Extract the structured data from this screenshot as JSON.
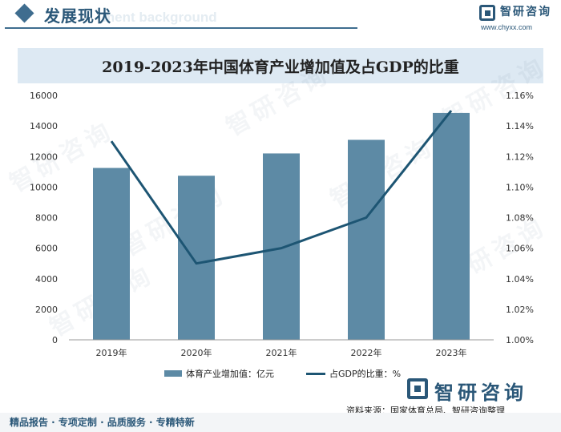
{
  "header": {
    "title": "发展现状",
    "ghost_text": "ment background",
    "brand_name": "智研咨询",
    "brand_url": "www.chyxx.com"
  },
  "watermark_text": "智研咨询",
  "chart_data": {
    "type": "bar",
    "title": "2019-2023年中国体育产业增加值及占GDP的比重",
    "categories": [
      "2019年",
      "2020年",
      "2021年",
      "2022年",
      "2023年"
    ],
    "series": [
      {
        "name": "体育产业增加值：亿元",
        "type": "bar",
        "axis": "left",
        "color": "#5d8aa5",
        "values": [
          11250,
          10740,
          12200,
          13090,
          14850
        ]
      },
      {
        "name": "占GDP的比重：%",
        "type": "line",
        "axis": "right",
        "color": "#1d5573",
        "values": [
          1.13,
          1.05,
          1.06,
          1.08,
          1.15
        ]
      }
    ],
    "y_left": {
      "min": 0,
      "max": 16000,
      "step": 2000,
      "ticks": [
        "0",
        "2000",
        "4000",
        "6000",
        "8000",
        "10000",
        "12000",
        "14000",
        "16000"
      ]
    },
    "y_right": {
      "min": 1.0,
      "max": 1.16,
      "step": 0.02,
      "ticks": [
        "1.00%",
        "1.02%",
        "1.04%",
        "1.06%",
        "1.08%",
        "1.10%",
        "1.12%",
        "1.14%",
        "1.16%"
      ]
    },
    "legend_position": "bottom-center"
  },
  "footer": {
    "brand_name": "智研咨询",
    "source": "资料来源：国家体育总局、智研咨询整理",
    "tagline": "精品报告 · 专项定制 · 品质服务 · 专精特新"
  }
}
